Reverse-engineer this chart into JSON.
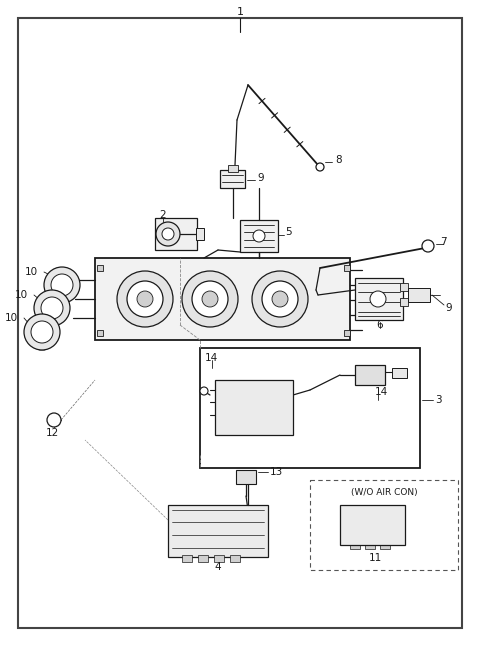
{
  "bg": "#ffffff",
  "lc": "#1a1a1a",
  "fig_w": 4.8,
  "fig_h": 6.56,
  "dpi": 100
}
